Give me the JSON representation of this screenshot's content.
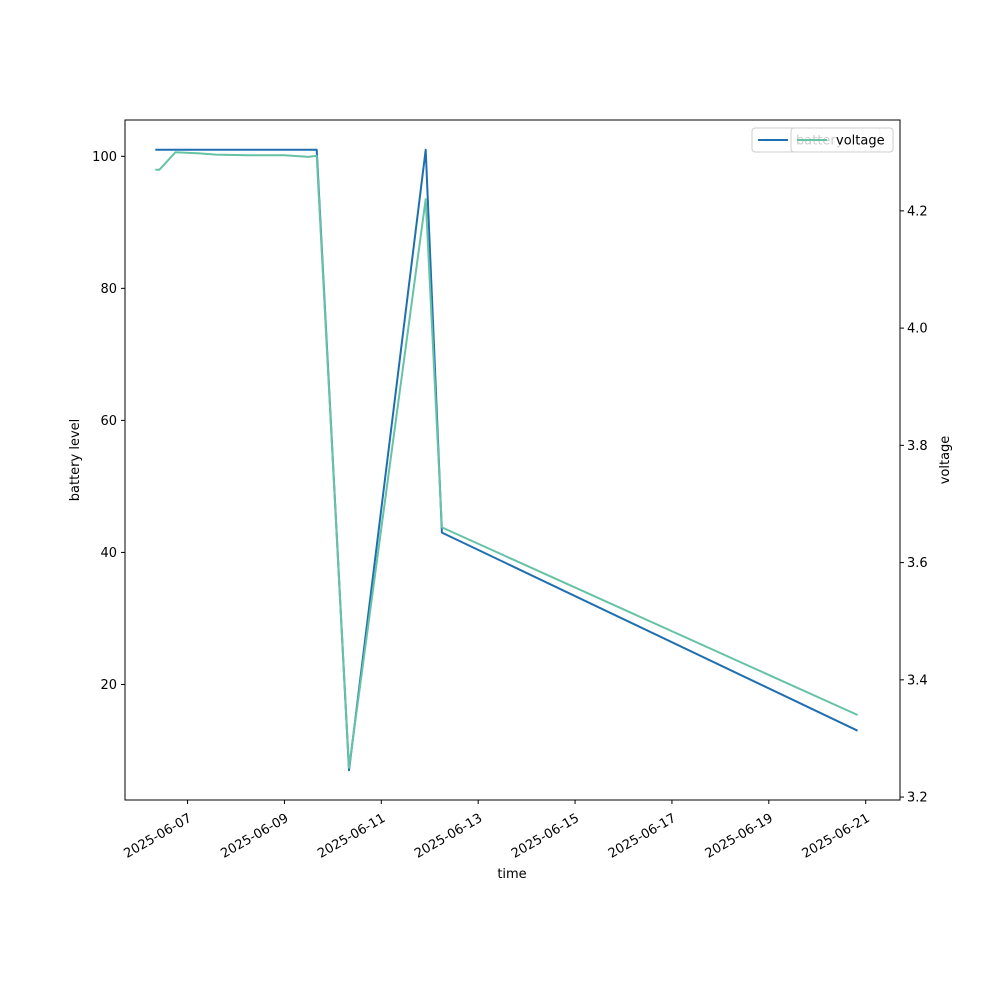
{
  "chart_data": {
    "type": "line",
    "title": "",
    "xlabel": "time",
    "ylabel": "battery level",
    "y2label": "voltage",
    "x_tick_labels": [
      "2025-06-07",
      "2025-06-09",
      "2025-06-11",
      "2025-06-13",
      "2025-06-15",
      "2025-06-17",
      "2025-06-19",
      "2025-06-21"
    ],
    "y_ticks": [
      20,
      40,
      60,
      80,
      100
    ],
    "y2_ticks": [
      3.2,
      3.4,
      3.6,
      3.8,
      4.0,
      4.2
    ],
    "ylim": [
      2.5,
      105.5
    ],
    "y2lim": [
      3.195,
      4.355
    ],
    "xlim": [
      "2025-06-05T17:00",
      "2025-06-21T17:00"
    ],
    "legend": {
      "placement": "top-right",
      "entries": [
        "battery",
        "voltage"
      ]
    },
    "grid": false,
    "series": [
      {
        "name": "battery",
        "axis": "left",
        "color": "#1f6fb0",
        "points": [
          [
            "2025-06-06T08:00",
            101
          ],
          [
            "2025-06-09T16:00",
            101
          ],
          [
            "2025-06-10T08:00",
            7
          ],
          [
            "2025-06-11T22:00",
            101
          ],
          [
            "2025-06-12T06:00",
            43
          ],
          [
            "2025-06-20T20:00",
            13
          ]
        ]
      },
      {
        "name": "voltage",
        "axis": "right",
        "color": "#66c2a5",
        "points": [
          [
            "2025-06-06T08:00",
            4.27
          ],
          [
            "2025-06-06T10:00",
            4.27
          ],
          [
            "2025-06-06T18:00",
            4.3
          ],
          [
            "2025-06-07T06:00",
            4.298
          ],
          [
            "2025-06-07T14:00",
            4.296
          ],
          [
            "2025-06-08T06:00",
            4.295
          ],
          [
            "2025-06-09T00:00",
            4.295
          ],
          [
            "2025-06-09T12:00",
            4.292
          ],
          [
            "2025-06-09T16:00",
            4.294
          ],
          [
            "2025-06-10T08:00",
            3.25
          ],
          [
            "2025-06-11T22:00",
            4.22
          ],
          [
            "2025-06-12T06:00",
            3.66
          ],
          [
            "2025-06-20T20:00",
            3.34
          ]
        ]
      }
    ]
  }
}
